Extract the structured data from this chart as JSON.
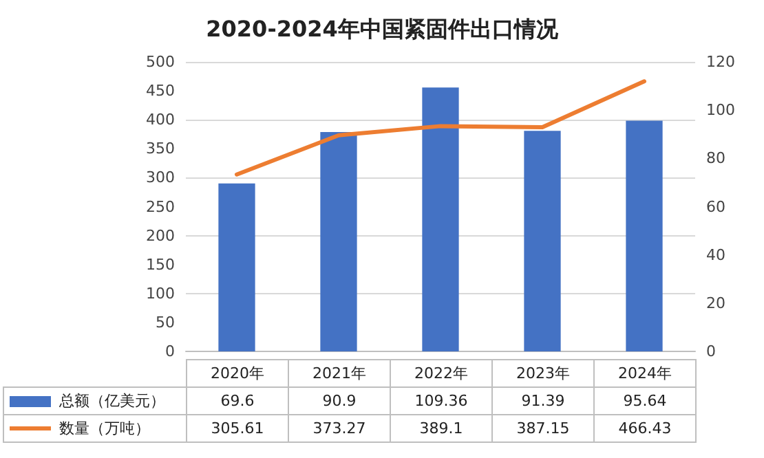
{
  "chart_data": {
    "type": "bar",
    "title": "2020-2024年中国紧固件出口情况",
    "categories": [
      "2020年",
      "2021年",
      "2022年",
      "2023年",
      "2024年"
    ],
    "series": [
      {
        "name": "总额（亿美元）",
        "axis": "y2",
        "color": "#4472c4",
        "values": [
          69.6,
          90.9,
          109.36,
          91.39,
          95.64
        ]
      },
      {
        "name": "数量（万吨）",
        "type": "line",
        "axis": "y",
        "color": "#ed7d31",
        "values": [
          305.61,
          373.27,
          389.1,
          387.15,
          466.43
        ]
      }
    ],
    "ylim": [
      0,
      500
    ],
    "yticks": [
      0,
      50,
      100,
      150,
      200,
      250,
      300,
      350,
      400,
      450,
      500
    ],
    "y2lim": [
      0,
      120
    ],
    "y2ticks": [
      0,
      20,
      40,
      60,
      80,
      100,
      120
    ],
    "grid": "y",
    "legend": "bottom",
    "data_labels": true,
    "marker": "none",
    "line_style": "solid"
  }
}
